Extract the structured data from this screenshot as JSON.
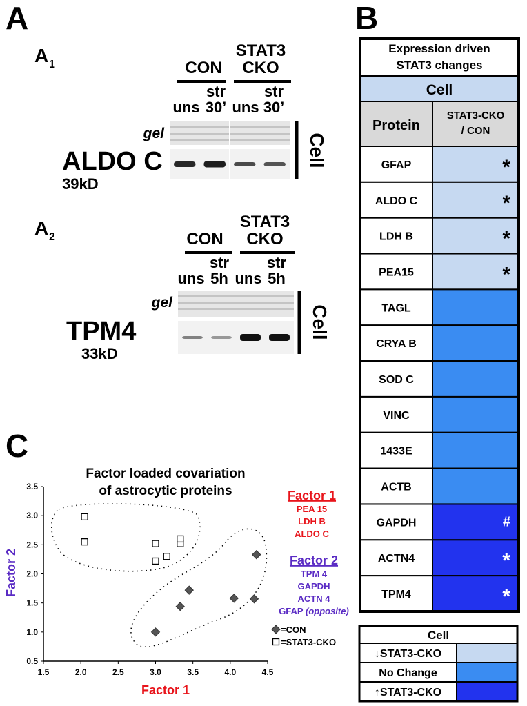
{
  "panel_labels": {
    "a": "A",
    "b": "B",
    "c": "C"
  },
  "panel_a": {
    "blots": [
      {
        "label": "A",
        "sub": "1",
        "group1": "CON",
        "group2": [
          "STAT3",
          "CKO"
        ],
        "lanes": [
          [
            "uns"
          ],
          [
            "str",
            "30’"
          ],
          [
            "uns"
          ],
          [
            "str",
            "30’"
          ]
        ],
        "gel": "gel",
        "protein": "ALDO C",
        "weight": "39kD",
        "side": "Cell"
      },
      {
        "label": "A",
        "sub": "2",
        "group1": "CON",
        "group2": [
          "STAT3",
          "CKO"
        ],
        "lanes": [
          [
            "uns"
          ],
          [
            "str",
            "5h"
          ],
          [
            "uns"
          ],
          [
            "str",
            "5h"
          ]
        ],
        "gel": "gel",
        "protein": "TPM4",
        "weight": "33kD",
        "side": "Cell"
      }
    ]
  },
  "panel_b": {
    "title": [
      "Expression driven",
      "STAT3 changes"
    ],
    "section": "Cell",
    "col_headers": [
      "Protein",
      [
        "STAT3-CKO",
        "/ CON"
      ]
    ],
    "rows": [
      {
        "protein": "GFAP",
        "mark": "*",
        "color": "#c6d9f1",
        "mark_color": "#000000"
      },
      {
        "protein": "ALDO C",
        "mark": "*",
        "color": "#c6d9f1",
        "mark_color": "#000000"
      },
      {
        "protein": "LDH B",
        "mark": "*",
        "color": "#c6d9f1",
        "mark_color": "#000000"
      },
      {
        "protein": "PEA15",
        "mark": "*",
        "color": "#c6d9f1",
        "mark_color": "#000000"
      },
      {
        "protein": "TAGL",
        "color": "#3a8cf2"
      },
      {
        "protein": "CRYA B",
        "color": "#3a8cf2"
      },
      {
        "protein": "SOD C",
        "color": "#3a8cf2"
      },
      {
        "protein": "VINC",
        "color": "#3a8cf2"
      },
      {
        "protein": "1433E",
        "color": "#3a8cf2"
      },
      {
        "protein": "ACTB",
        "color": "#3a8cf2"
      },
      {
        "protein": "GAPDH",
        "mark": "#",
        "color": "#2233ee",
        "mark_color": "#ffffff"
      },
      {
        "protein": "ACTN4",
        "mark": "*",
        "color": "#2233ee",
        "mark_color": "#ffffff"
      },
      {
        "protein": "TPM4",
        "mark": "*",
        "color": "#2233ee",
        "mark_color": "#ffffff"
      }
    ],
    "legend": {
      "title": "Cell",
      "items": [
        {
          "label": "↓STAT3-CKO",
          "color": "#c6d9f1"
        },
        {
          "label": "No Change",
          "color": "#3a8cf2"
        },
        {
          "label": "↑STAT3-CKO",
          "color": "#2233ee"
        }
      ]
    }
  },
  "panel_c": {
    "type": "scatter",
    "title": [
      "Factor loaded covariation",
      "of astrocytic proteins"
    ],
    "x_label": "Factor 1",
    "y_label": "Factor 2",
    "xlim": [
      1.5,
      4.5
    ],
    "ylim": [
      0.5,
      3.5
    ],
    "xticks": [
      1.5,
      {
        "value": 2,
        "label": "2.0"
      },
      2.5,
      {
        "value": 3,
        "label": "3.0"
      },
      3.5,
      {
        "value": 4,
        "label": "4.0"
      },
      4.5
    ],
    "yticks": [
      0.5,
      {
        "value": 1,
        "label": "1.0"
      },
      1.5,
      {
        "value": 2,
        "label": "2.0"
      },
      2.5,
      {
        "value": 3,
        "label": "3.0"
      },
      3.5
    ],
    "series": [
      {
        "label": "=CON",
        "marker": "diamond",
        "color": "#555555",
        "x": [
          3.0,
          3.33,
          3.45,
          4.05,
          4.32,
          4.35
        ],
        "values": [
          1.0,
          1.44,
          1.72,
          1.58,
          1.57,
          2.33
        ]
      },
      {
        "label": "=STAT3-CKO",
        "marker": "square",
        "color": "#000000",
        "x": [
          2.05,
          2.05,
          3.0,
          3.0,
          3.15,
          3.33,
          3.33
        ],
        "values": [
          2.98,
          2.55,
          2.52,
          2.22,
          2.3,
          2.52,
          2.6
        ]
      }
    ],
    "factors": [
      {
        "name": "Factor 1",
        "color": "#e8141b",
        "items": [
          "PEA 15",
          "LDH B",
          "ALDO C"
        ]
      },
      {
        "name": "Factor 2",
        "color": "#5a2bc4",
        "items": [
          "TPM 4",
          "GAPDH",
          "ACTN 4",
          "GFAP"
        ],
        "note": "(opposite)"
      }
    ]
  }
}
